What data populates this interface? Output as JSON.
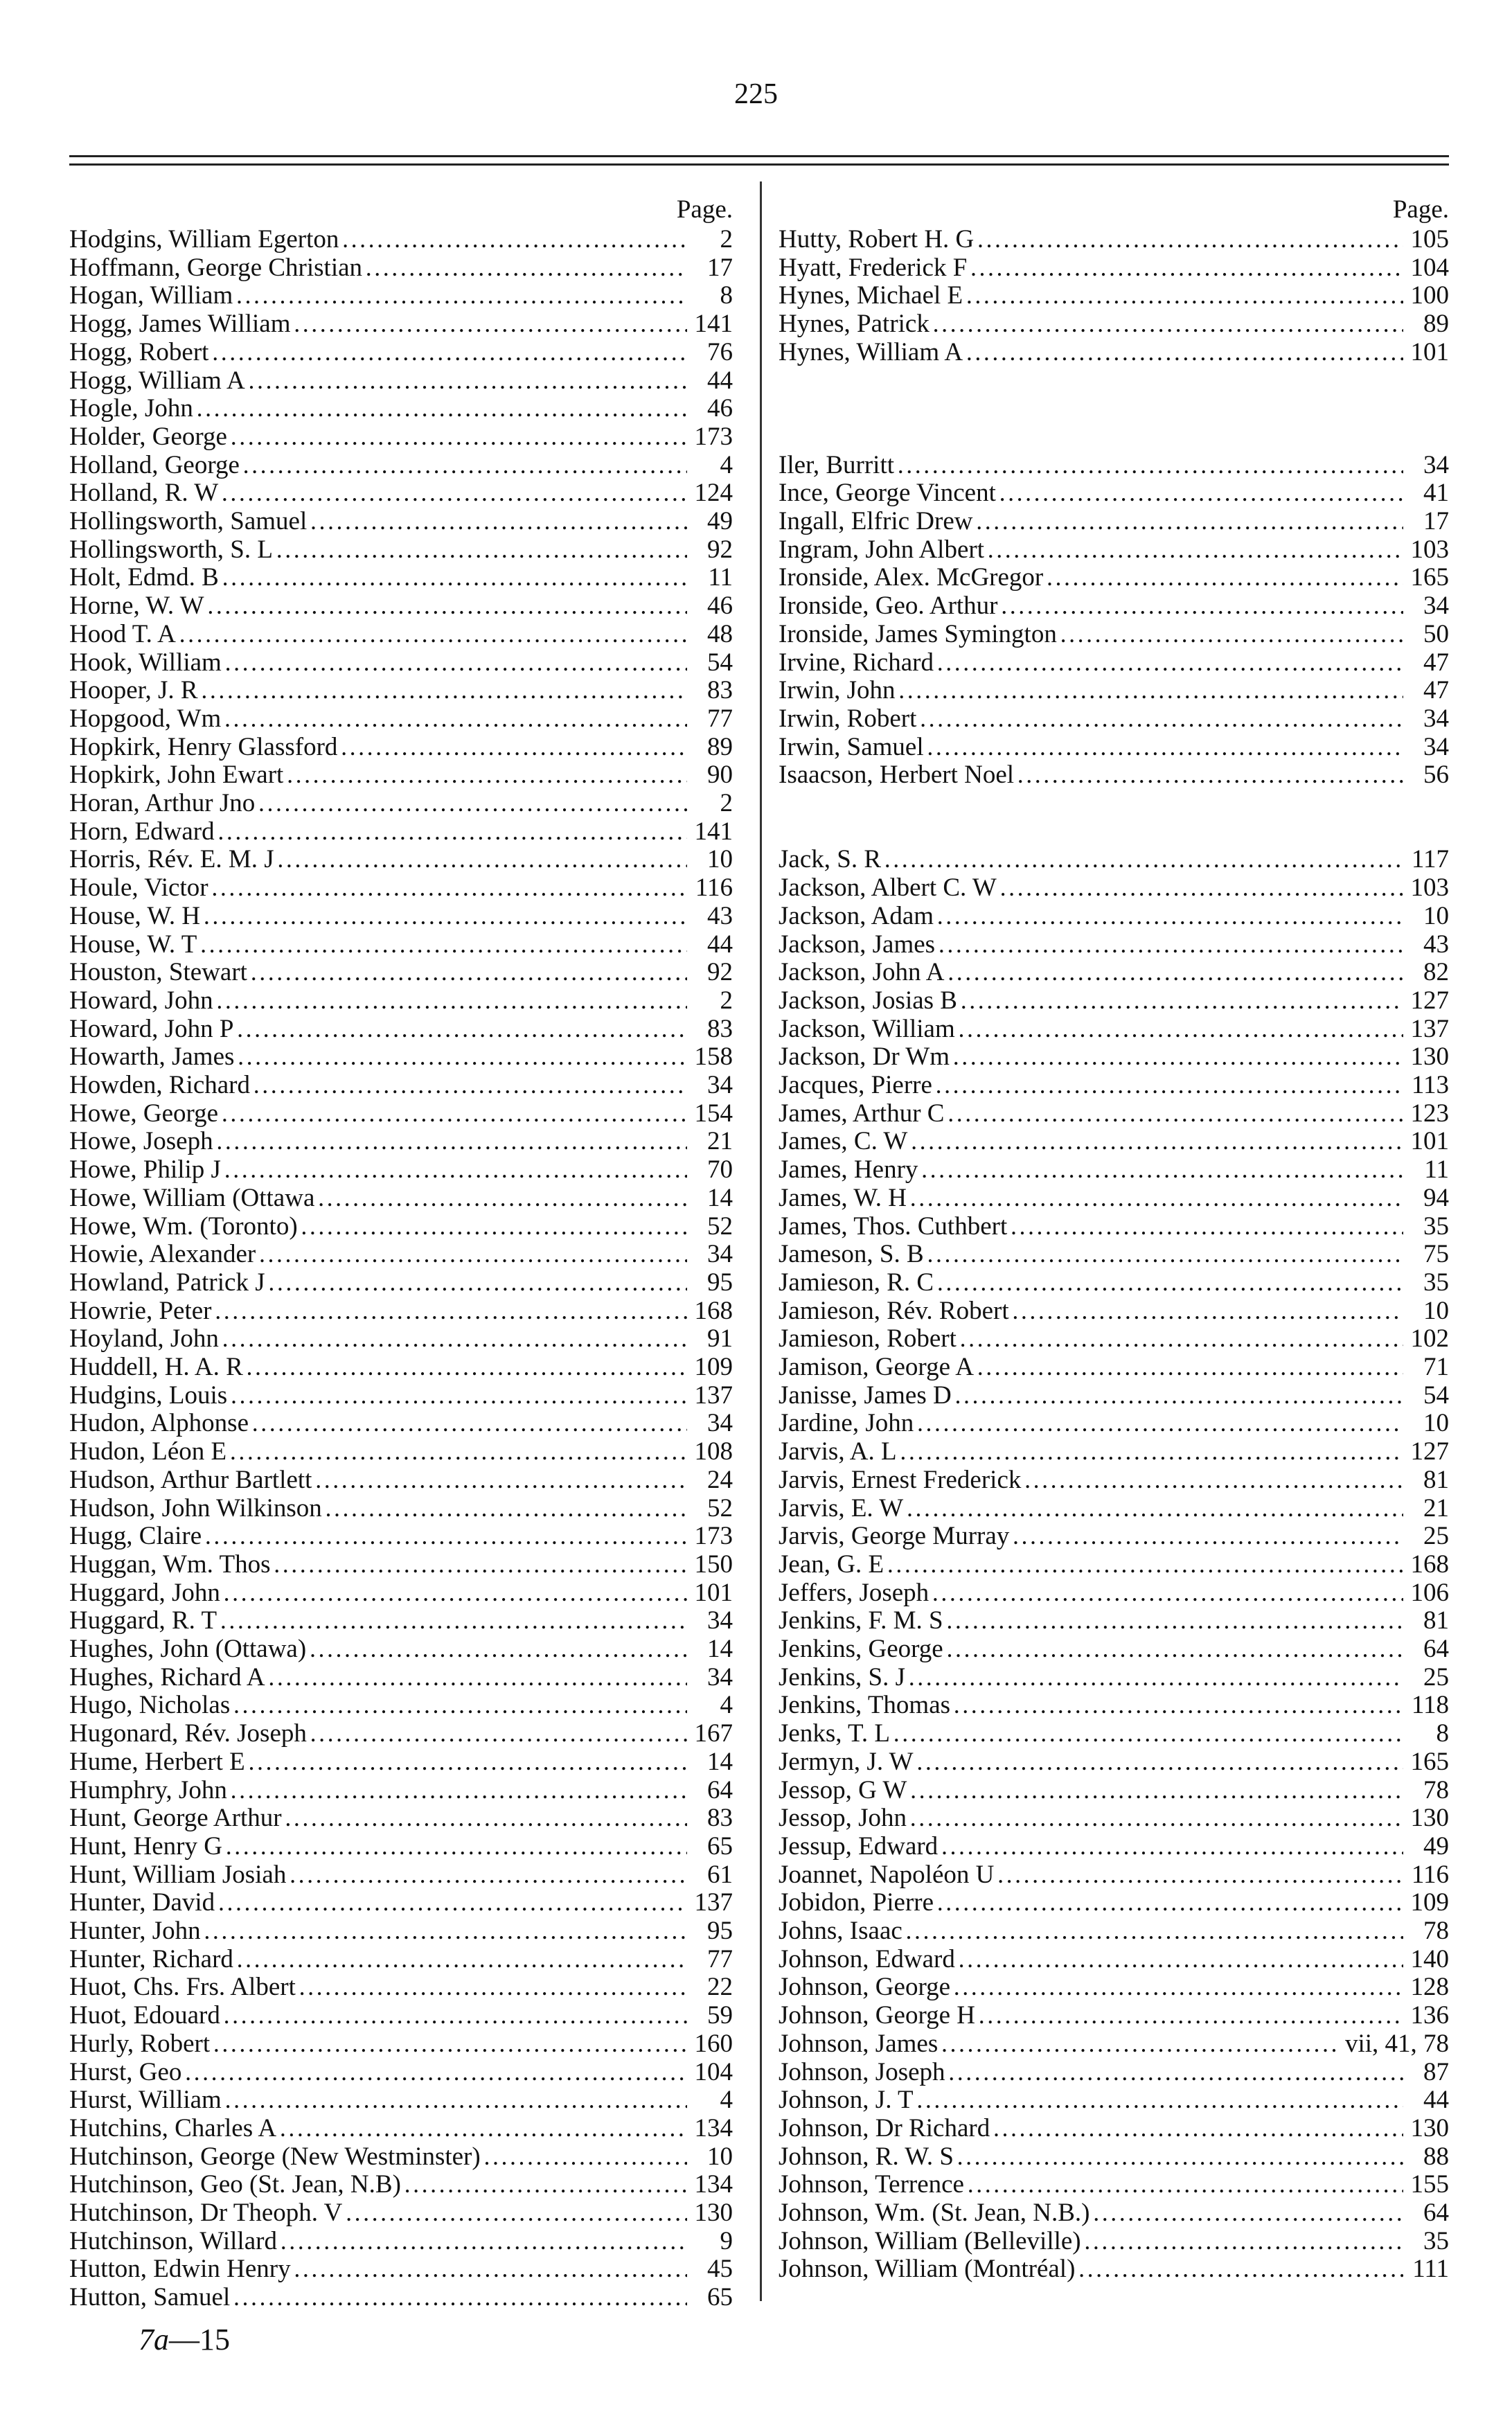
{
  "page_number": "225",
  "column_header": "Page.",
  "footer": {
    "sheet_prefix": "7a",
    "sheet_suffix": "—15"
  },
  "left_column": [
    {
      "name": "Hodgins, William Egerton",
      "page": "2"
    },
    {
      "name": "Hoffmann, George Christian",
      "page": "17"
    },
    {
      "name": "Hogan, William",
      "page": "8"
    },
    {
      "name": "Hogg, James William",
      "page": "141"
    },
    {
      "name": "Hogg, Robert",
      "page": "76"
    },
    {
      "name": "Hogg, William A",
      "page": "44"
    },
    {
      "name": "Hogle, John",
      "page": "46"
    },
    {
      "name": "Holder, George",
      "page": "173"
    },
    {
      "name": "Holland, George",
      "page": "4"
    },
    {
      "name": "Holland, R. W",
      "page": "124"
    },
    {
      "name": "Hollingsworth, Samuel",
      "page": "49"
    },
    {
      "name": "Hollingsworth, S. L",
      "page": "92"
    },
    {
      "name": "Holt, Edmd. B",
      "page": "11"
    },
    {
      "name": "Horne, W. W",
      "page": "46"
    },
    {
      "name": "Hood T. A",
      "page": "48"
    },
    {
      "name": "Hook, William",
      "page": "54"
    },
    {
      "name": "Hooper, J. R",
      "page": "83"
    },
    {
      "name": "Hopgood, Wm",
      "page": "77"
    },
    {
      "name": "Hopkirk, Henry Glassford",
      "page": "89"
    },
    {
      "name": "Hopkirk, John Ewart",
      "page": "90"
    },
    {
      "name": "Horan, Arthur Jno",
      "page": "2"
    },
    {
      "name": "Horn, Edward",
      "page": "141"
    },
    {
      "name": "Horris, Rév. E. M. J",
      "page": "10"
    },
    {
      "name": "Houle, Victor",
      "page": "116"
    },
    {
      "name": "House, W. H",
      "page": "43"
    },
    {
      "name": "House, W. T",
      "page": "44"
    },
    {
      "name": "Houston, Stewart",
      "page": "92"
    },
    {
      "name": "Howard, John",
      "page": "2"
    },
    {
      "name": "Howard, John P",
      "page": "83"
    },
    {
      "name": "Howarth, James",
      "page": "158"
    },
    {
      "name": "Howden, Richard",
      "page": "34"
    },
    {
      "name": "Howe, George",
      "page": "154"
    },
    {
      "name": "Howe, Joseph",
      "page": "21"
    },
    {
      "name": "Howe, Philip J",
      "page": "70"
    },
    {
      "name": "Howe, William (Ottawa",
      "page": "14"
    },
    {
      "name": "Howe, Wm. (Toronto)",
      "page": "52"
    },
    {
      "name": "Howie, Alexander",
      "page": "34"
    },
    {
      "name": "Howland, Patrick J",
      "page": "95"
    },
    {
      "name": "Howrie, Peter",
      "page": "168"
    },
    {
      "name": "Hoyland, John",
      "page": "91"
    },
    {
      "name": "Huddell, H. A. R",
      "page": "109"
    },
    {
      "name": "Hudgins, Louis",
      "page": "137"
    },
    {
      "name": "Hudon, Alphonse",
      "page": "34"
    },
    {
      "name": "Hudon, Léon E",
      "page": "108"
    },
    {
      "name": "Hudson, Arthur Bartlett",
      "page": "24"
    },
    {
      "name": "Hudson, John Wilkinson",
      "page": "52"
    },
    {
      "name": "Hugg, Claire",
      "page": "173"
    },
    {
      "name": "Huggan, Wm. Thos",
      "page": "150"
    },
    {
      "name": "Huggard, John",
      "page": "101"
    },
    {
      "name": "Huggard, R. T",
      "page": "34"
    },
    {
      "name": "Hughes, John (Ottawa)",
      "page": "14"
    },
    {
      "name": "Hughes, Richard A",
      "page": "34"
    },
    {
      "name": "Hugo, Nicholas",
      "page": "4"
    },
    {
      "name": "Hugonard, Rév. Joseph",
      "page": "167"
    },
    {
      "name": "Hume, Herbert E",
      "page": "14"
    },
    {
      "name": "Humphry, John",
      "page": "64"
    },
    {
      "name": "Hunt, George Arthur",
      "page": "83"
    },
    {
      "name": "Hunt, Henry G",
      "page": "65"
    },
    {
      "name": "Hunt, William Josiah",
      "page": "61"
    },
    {
      "name": "Hunter, David",
      "page": "137"
    },
    {
      "name": "Hunter, John",
      "page": "95"
    },
    {
      "name": "Hunter, Richard",
      "page": "77"
    },
    {
      "name": "Huot, Chs. Frs. Albert",
      "page": "22"
    },
    {
      "name": "Huot, Edouard",
      "page": "59"
    },
    {
      "name": "Hurly, Robert",
      "page": "160"
    },
    {
      "name": "Hurst, Geo",
      "page": "104"
    },
    {
      "name": "Hurst, William",
      "page": "4"
    },
    {
      "name": "Hutchins, Charles A",
      "page": "134"
    },
    {
      "name": "Hutchinson, George (New Westminster)",
      "page": "10"
    },
    {
      "name": "Hutchinson, Geo (St. Jean, N.B)",
      "page": "134"
    },
    {
      "name": "Hutchinson, Dr Theoph. V",
      "page": "130"
    },
    {
      "name": "Hutchinson, Willard",
      "page": "9"
    },
    {
      "name": "Hutton, Edwin Henry",
      "page": "45"
    },
    {
      "name": "Hutton, Samuel",
      "page": "65"
    }
  ],
  "right_column_sections": [
    [
      {
        "name": "Hutty, Robert H. G",
        "page": "105"
      },
      {
        "name": "Hyatt, Frederick F",
        "page": "104"
      },
      {
        "name": "Hynes, Michael E",
        "page": "100"
      },
      {
        "name": "Hynes, Patrick",
        "page": "89"
      },
      {
        "name": "Hynes, William A",
        "page": "101"
      }
    ],
    [
      {
        "name": "Iler, Burritt",
        "page": "34"
      },
      {
        "name": "Ince, George Vincent",
        "page": "41"
      },
      {
        "name": "Ingall, Elfric Drew",
        "page": "17"
      },
      {
        "name": "Ingram, John Albert",
        "page": "103"
      },
      {
        "name": "Ironside, Alex. McGregor",
        "page": "165"
      },
      {
        "name": "Ironside, Geo. Arthur",
        "page": "34"
      },
      {
        "name": "Ironside, James Symington",
        "page": "50"
      },
      {
        "name": "Irvine, Richard",
        "page": "47"
      },
      {
        "name": "Irwin, John",
        "page": "47"
      },
      {
        "name": "Irwin, Robert",
        "page": "34"
      },
      {
        "name": "Irwin, Samuel",
        "page": "34"
      },
      {
        "name": "Isaacson, Herbert Noel",
        "page": "56"
      }
    ],
    [
      {
        "name": "Jack, S. R",
        "page": "117"
      },
      {
        "name": "Jackson, Albert C. W",
        "page": "103"
      },
      {
        "name": "Jackson, Adam",
        "page": "10"
      },
      {
        "name": "Jackson, James",
        "page": "43"
      },
      {
        "name": "Jackson, John A",
        "page": "82"
      },
      {
        "name": "Jackson, Josias B",
        "page": "127"
      },
      {
        "name": "Jackson, William",
        "page": "137"
      },
      {
        "name": "Jackson, Dr Wm",
        "page": "130"
      },
      {
        "name": "Jacques, Pierre",
        "page": "113"
      },
      {
        "name": "James, Arthur C",
        "page": "123"
      },
      {
        "name": "James, C. W",
        "page": "101"
      },
      {
        "name": "James, Henry",
        "page": "11"
      },
      {
        "name": "James, W. H",
        "page": "94"
      },
      {
        "name": "James, Thos. Cuthbert",
        "page": "35"
      },
      {
        "name": "Jameson, S. B",
        "page": "75"
      },
      {
        "name": "Jamieson, R. C",
        "page": "35"
      },
      {
        "name": "Jamieson, Rév. Robert",
        "page": "10"
      },
      {
        "name": "Jamieson, Robert",
        "page": "102"
      },
      {
        "name": "Jamison, George A",
        "page": "71"
      },
      {
        "name": "Janisse, James D",
        "page": "54"
      },
      {
        "name": "Jardine, John",
        "page": "10"
      },
      {
        "name": "Jarvis, A. L",
        "page": "127"
      },
      {
        "name": "Jarvis, Ernest Frederick",
        "page": "81"
      },
      {
        "name": "Jarvis, E. W",
        "page": "21"
      },
      {
        "name": "Jarvis, George Murray",
        "page": "25"
      },
      {
        "name": "Jean, G. E",
        "page": "168"
      },
      {
        "name": "Jeffers, Joseph",
        "page": "106"
      },
      {
        "name": "Jenkins, F. M. S",
        "page": "81"
      },
      {
        "name": "Jenkins, George",
        "page": "64"
      },
      {
        "name": "Jenkins, S. J",
        "page": "25"
      },
      {
        "name": "Jenkins, Thomas",
        "page": "118"
      },
      {
        "name": "Jenks, T. L",
        "page": "8"
      },
      {
        "name": "Jermyn, J. W",
        "page": "165"
      },
      {
        "name": "Jessop, G W",
        "page": "78"
      },
      {
        "name": "Jessop, John",
        "page": "130"
      },
      {
        "name": "Jessup, Edward",
        "page": "49"
      },
      {
        "name": "Joannet, Napoléon U",
        "page": "116"
      },
      {
        "name": "Jobidon, Pierre",
        "page": "109"
      },
      {
        "name": "Johns, Isaac",
        "page": "78"
      },
      {
        "name": "Johnson, Edward",
        "page": "140"
      },
      {
        "name": "Johnson, George",
        "page": "128"
      },
      {
        "name": "Johnson, George H",
        "page": "136"
      },
      {
        "name": "Johnson, James",
        "page": "vii, 41, 78"
      },
      {
        "name": "Johnson, Joseph",
        "page": "87"
      },
      {
        "name": "Johnson, J. T",
        "page": "44"
      },
      {
        "name": "Johnson, Dr Richard",
        "page": "130"
      },
      {
        "name": "Johnson, R. W. S",
        "page": "88"
      },
      {
        "name": "Johnson, Terrence",
        "page": "155"
      },
      {
        "name": "Johnson, Wm. (St. Jean, N.B.)",
        "page": "64"
      },
      {
        "name": "Johnson, William (Belleville)",
        "page": "35"
      },
      {
        "name": "Johnson, William (Montréal)",
        "page": "111"
      }
    ]
  ]
}
